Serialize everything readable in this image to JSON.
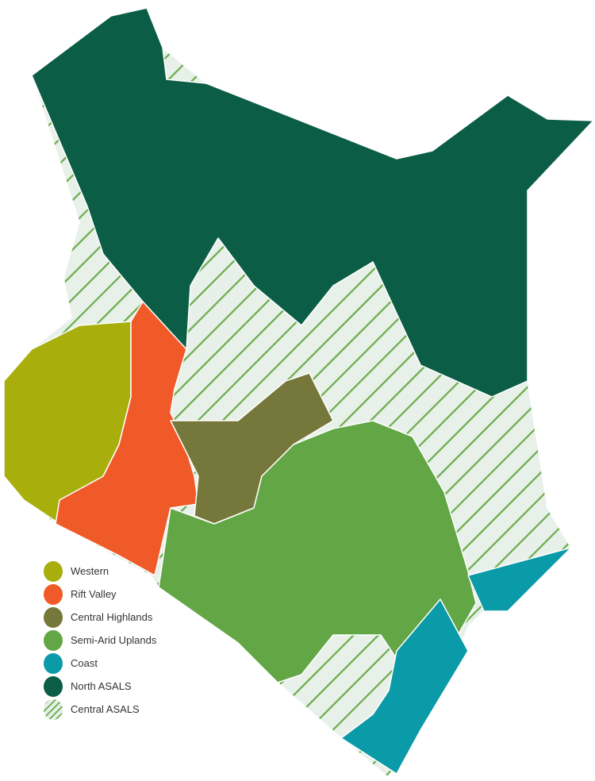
{
  "legend": [
    {
      "label": "Western",
      "color": "#a8ae0c"
    },
    {
      "label": "Rift Valley",
      "color": "#f05a28"
    },
    {
      "label": "Central Highlands",
      "color": "#76773a"
    },
    {
      "label": "Semi-Arid Uplands",
      "color": "#63a646"
    },
    {
      "label": "Coast",
      "color": "#0b9aa7"
    },
    {
      "label": "North ASALS",
      "color": "#0b5e45"
    },
    {
      "label": "Central ASALS",
      "color": "#e6efe8",
      "pattern": "diagonal-hatch"
    }
  ]
}
